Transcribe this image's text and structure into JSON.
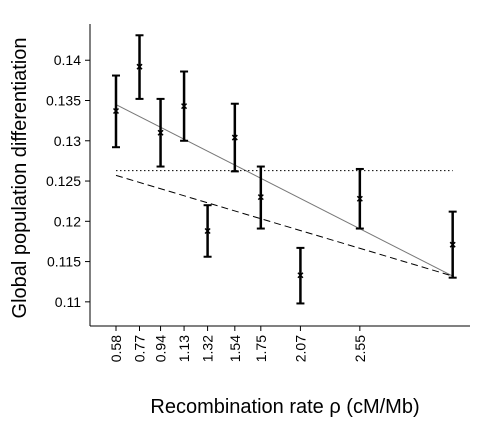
{
  "chart_data": {
    "type": "scatter",
    "title": "",
    "xlabel": "Recombination rate ρ (cM/Mb)",
    "ylabel": "Global population differentiation",
    "xlim": [
      0.37,
      3.44
    ],
    "ylim": [
      0.107,
      0.1445
    ],
    "x_ticks": [
      "0.58",
      "0.77",
      "0.94",
      "1.13",
      "1.32",
      "1.54",
      "1.75",
      "2.07",
      "2.55"
    ],
    "x_tick_values": [
      0.58,
      0.77,
      0.94,
      1.13,
      1.32,
      1.54,
      1.75,
      2.07,
      2.55
    ],
    "y_ticks": [
      "0.11",
      "0.115",
      "0.12",
      "0.125",
      "0.13",
      "0.135",
      "0.14"
    ],
    "y_tick_values": [
      0.11,
      0.115,
      0.12,
      0.125,
      0.13,
      0.135,
      0.14
    ],
    "series": [
      {
        "points": [
          {
            "x": 0.58,
            "y": 0.1337,
            "lo": 0.1292,
            "hi": 0.1381
          },
          {
            "x": 0.77,
            "y": 0.1392,
            "lo": 0.1352,
            "hi": 0.1431
          },
          {
            "x": 0.94,
            "y": 0.131,
            "lo": 0.1268,
            "hi": 0.1352
          },
          {
            "x": 1.13,
            "y": 0.1343,
            "lo": 0.13,
            "hi": 0.1386
          },
          {
            "x": 1.32,
            "y": 0.1188,
            "lo": 0.1156,
            "hi": 0.122
          },
          {
            "x": 1.54,
            "y": 0.1304,
            "lo": 0.1262,
            "hi": 0.1346
          },
          {
            "x": 1.75,
            "y": 0.123,
            "lo": 0.1191,
            "hi": 0.1268
          },
          {
            "x": 2.07,
            "y": 0.1133,
            "lo": 0.1098,
            "hi": 0.1167
          },
          {
            "x": 2.55,
            "y": 0.1228,
            "lo": 0.1191,
            "hi": 0.1265
          },
          {
            "x": 3.3,
            "y": 0.1171,
            "lo": 0.113,
            "hi": 0.1212
          }
        ]
      }
    ],
    "lines": [
      {
        "style": "solid",
        "color": "#777777",
        "x": [
          0.58,
          3.3
        ],
        "y": [
          0.1345,
          0.1132
        ]
      },
      {
        "style": "dotted",
        "color": "#000000",
        "x": [
          0.58,
          3.3
        ],
        "y": [
          0.1263,
          0.1263
        ]
      },
      {
        "style": "dashed",
        "color": "#000000",
        "x": [
          0.58,
          3.3
        ],
        "y": [
          0.1257,
          0.1132
        ]
      }
    ]
  }
}
